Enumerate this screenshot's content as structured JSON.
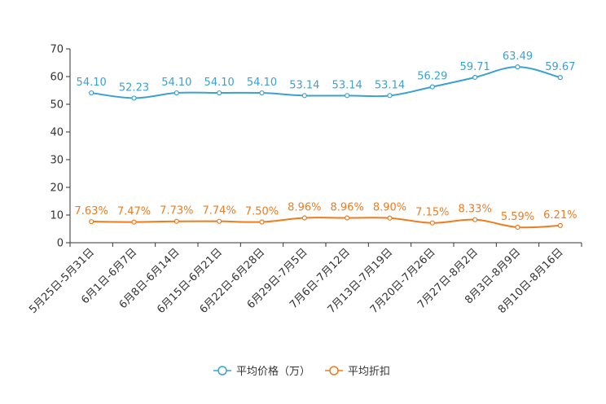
{
  "chart_data": {
    "type": "line",
    "title": "",
    "xlabel": "",
    "ylabel": "",
    "ylim": [
      0,
      70
    ],
    "yticks": [
      0,
      10,
      20,
      30,
      40,
      50,
      60,
      70
    ],
    "grid": false,
    "legend_position": "bottom-center",
    "categories": [
      "5月25日-5月31日",
      "6月1日-6月7日",
      "6月8日-6月14日",
      "6月15日-6月21日",
      "6月22日-6月28日",
      "6月29日-7月5日",
      "7月6日-7月12日",
      "7月13日-7月19日",
      "7月20日-7月26日",
      "7月27日-8月2日",
      "8月3日-8月9日",
      "8月10日-8月16日"
    ],
    "series": [
      {
        "name": "平均价格（万）",
        "color": "#3ba1d3",
        "values": [
          54.1,
          52.23,
          54.1,
          54.1,
          54.1,
          53.14,
          53.14,
          53.14,
          56.29,
          59.71,
          63.49,
          59.67
        ],
        "labels": [
          "54.10",
          "52.23",
          "54.10",
          "54.10",
          "54.10",
          "53.14",
          "53.14",
          "53.14",
          "56.29",
          "59.71",
          "63.49",
          "59.67"
        ]
      },
      {
        "name": "平均折扣",
        "color": "#f07b1d",
        "values": [
          7.63,
          7.47,
          7.73,
          7.74,
          7.5,
          8.96,
          8.96,
          8.9,
          7.15,
          8.33,
          5.59,
          6.21
        ],
        "labels": [
          "7.63%",
          "7.47%",
          "7.73%",
          "7.74%",
          "7.50%",
          "8.96%",
          "8.96%",
          "8.90%",
          "7.15%",
          "8.33%",
          "5.59%",
          "6.21%"
        ]
      }
    ]
  }
}
